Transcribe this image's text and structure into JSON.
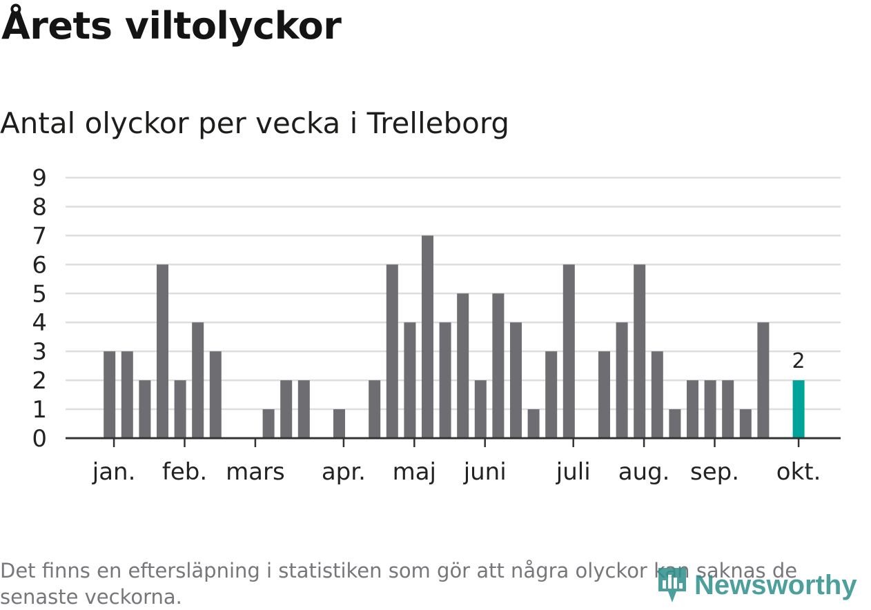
{
  "title": "Årets viltolyckor",
  "subtitle": "Antal olyckor per vecka i Trelleborg",
  "footnote": "Det finns en eftersläpning i statistiken som gör att några olyckor kan saknas de senaste veckorna.",
  "brand": "Newsworthy",
  "colors": {
    "bar": "#6e6d72",
    "highlight": "#00a39a",
    "grid": "#dddddd",
    "axis": "#333333",
    "text": "#222222"
  },
  "chart_data": {
    "type": "bar",
    "ylim": [
      0,
      9
    ],
    "yticks": [
      0,
      1,
      2,
      3,
      4,
      5,
      6,
      7,
      8,
      9
    ],
    "values": [
      0,
      0,
      3,
      3,
      2,
      6,
      2,
      4,
      3,
      0,
      0,
      1,
      2,
      2,
      0,
      1,
      0,
      2,
      6,
      4,
      7,
      4,
      5,
      2,
      5,
      4,
      1,
      3,
      6,
      0,
      3,
      4,
      6,
      3,
      1,
      2,
      2,
      2,
      1,
      4,
      0,
      2
    ],
    "highlight_index": 41,
    "highlight_label": "2",
    "month_labels": [
      {
        "label": "jan.",
        "bar": 2.25
      },
      {
        "label": "feb.",
        "bar": 6.25
      },
      {
        "label": "mars",
        "bar": 10.25
      },
      {
        "label": "apr.",
        "bar": 15.25
      },
      {
        "label": "maj",
        "bar": 19.25
      },
      {
        "label": "juni",
        "bar": 23.25
      },
      {
        "label": "juli",
        "bar": 28.25
      },
      {
        "label": "aug.",
        "bar": 32.25
      },
      {
        "label": "sep.",
        "bar": 36.25
      },
      {
        "label": "okt.",
        "bar": 41.0
      }
    ],
    "grid": true,
    "legend": "none"
  }
}
